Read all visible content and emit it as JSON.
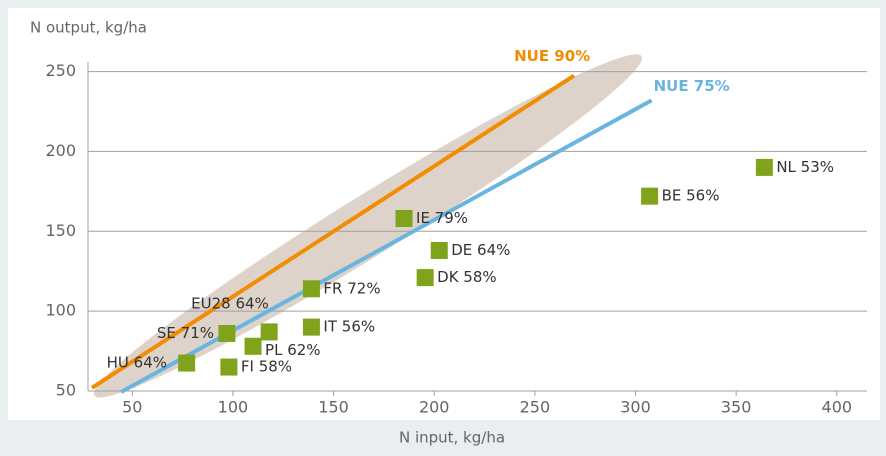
{
  "chart_data": {
    "type": "scatter",
    "y_label": "N output, kg/ha",
    "x_label": "N input, kg/ha",
    "xlim": [
      28,
      415
    ],
    "ylim": [
      50,
      256
    ],
    "xticks": [
      50,
      100,
      150,
      200,
      250,
      300,
      350,
      400
    ],
    "yticks": [
      50,
      100,
      150,
      200,
      250
    ],
    "grid": true,
    "marker_color": "#7fa31a",
    "points": {
      "labels": [
        "HU 64%",
        "SE 71%",
        "EU28 64%",
        "PL 62%",
        "FI 58%",
        "FR 72%",
        "IT 56%",
        "IE 79%",
        "DE 64%",
        "DK 58%",
        "BE 56%",
        "NL 53%"
      ],
      "x": [
        77,
        97,
        118,
        110,
        98,
        139,
        139,
        185,
        202.5,
        195.5,
        307,
        364
      ],
      "values": [
        67.5,
        86,
        87,
        78,
        65,
        114,
        90,
        158,
        138,
        121,
        172,
        190
      ]
    },
    "series": [
      {
        "name": "NUE 90%",
        "color": "#f28c00",
        "x": [
          30,
          269.5
        ],
        "values": [
          52,
          247.5
        ]
      },
      {
        "name": "NUE 75%",
        "color": "#6ab4e0",
        "x": [
          44.5,
          308
        ],
        "values": [
          49.4,
          232
        ]
      }
    ]
  }
}
